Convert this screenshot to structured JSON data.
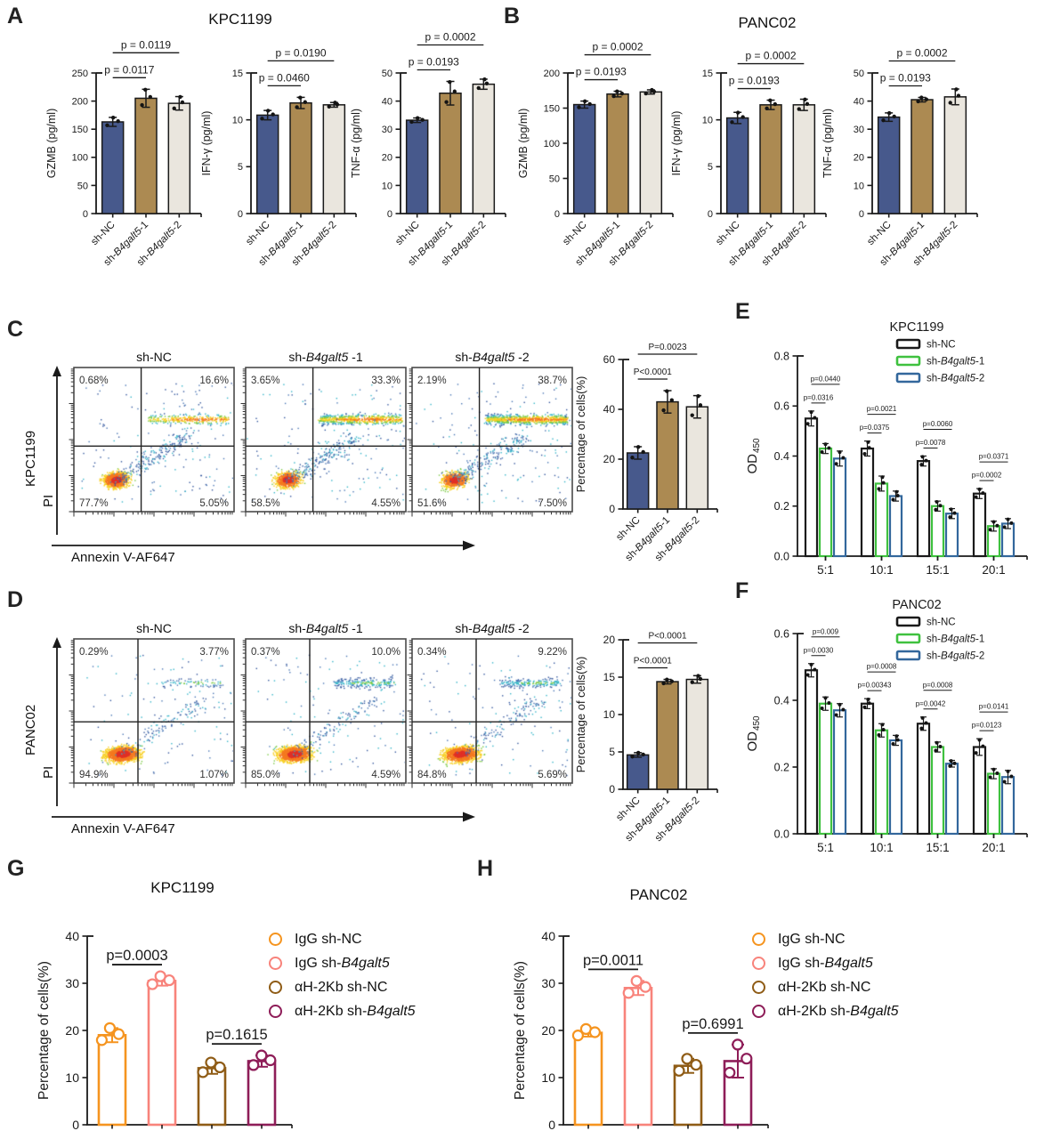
{
  "figure": {
    "panels": {
      "A": {
        "label": "A",
        "title": "KPC1199"
      },
      "B": {
        "label": "B",
        "title": "PANC02"
      },
      "C": {
        "label": "C"
      },
      "D": {
        "label": "D"
      },
      "E": {
        "label": "E"
      },
      "F": {
        "label": "F"
      },
      "G": {
        "label": "G",
        "title": "KPC1199"
      },
      "H": {
        "label": "H",
        "title": "PANC02"
      }
    }
  },
  "flow": {
    "x_axis_label": "Annexin V-AF647",
    "y_axis_label": "PI",
    "C": {
      "cell_line": "KPC1199",
      "plots": [
        {
          "title": "sh-NC",
          "ul": "0.68%",
          "ur": "16.6%",
          "ll": "77.7%",
          "lr": "5.05%"
        },
        {
          "title": "sh-B4galt5 -1",
          "ul": "3.65%",
          "ur": "33.3%",
          "ll": "58.5%",
          "lr": "4.55%"
        },
        {
          "title": "sh-B4galt5 -2",
          "ul": "2.19%",
          "ur": "38.7%",
          "ll": "51.6%",
          "lr": "7.50%"
        }
      ]
    },
    "D": {
      "cell_line": "PANC02",
      "plots": [
        {
          "title": "sh-NC",
          "ul": "0.29%",
          "ur": "3.77%",
          "ll": "94.9%",
          "lr": "1.07%"
        },
        {
          "title": "sh-B4galt5 -1",
          "ul": "0.37%",
          "ur": "10.0%",
          "ll": "85.0%",
          "lr": "4.59%"
        },
        {
          "title": "sh-B4galt5 -2",
          "ul": "0.34%",
          "ur": "9.22%",
          "ll": "84.8%",
          "lr": "5.69%"
        }
      ]
    }
  },
  "chart_data": [
    {
      "id": "a_gzmb",
      "type": "bar",
      "ylabel": "GZMB (pg/ml)",
      "ylim": [
        0,
        250
      ],
      "yticks": [
        "0",
        "50",
        "100",
        "150",
        "200",
        "250"
      ],
      "categories": [
        "sh-NC",
        "sh-B4galt5-1",
        "sh-B4galt5-2"
      ],
      "values": [
        163,
        205,
        196
      ],
      "errors": [
        8,
        16,
        12
      ],
      "bar_colors": [
        "#47598c",
        "#ac8a52",
        "#eae6de"
      ],
      "pvals": [
        {
          "a": 0,
          "b": 1,
          "label": "p = 0.0117"
        },
        {
          "a": 0,
          "b": 2,
          "label": "p = 0.0119"
        }
      ]
    },
    {
      "id": "a_ifng",
      "type": "bar",
      "ylabel": "IFN-γ (pg/ml)",
      "ylim": [
        0,
        15
      ],
      "yticks": [
        "0",
        "5",
        "10",
        "15"
      ],
      "categories": [
        "sh-NC",
        "sh-B4galt5-1",
        "sh-B4galt5-2"
      ],
      "values": [
        10.5,
        11.8,
        11.6
      ],
      "errors": [
        0.5,
        0.6,
        0.25
      ],
      "bar_colors": [
        "#47598c",
        "#ac8a52",
        "#eae6de"
      ],
      "pvals": [
        {
          "a": 0,
          "b": 1,
          "label": "p = 0.0460"
        },
        {
          "a": 0,
          "b": 2,
          "label": "p = 0.0190"
        }
      ]
    },
    {
      "id": "a_tnfa",
      "type": "bar",
      "ylabel": "TNF-α (pg/ml)",
      "ylim": [
        0,
        50
      ],
      "yticks": [
        "0",
        "10",
        "20",
        "30",
        "40",
        "50"
      ],
      "categories": [
        "sh-NC",
        "sh-B4galt5-1",
        "sh-B4galt5-2"
      ],
      "values": [
        33.2,
        42.8,
        46
      ],
      "errors": [
        0.8,
        4.2,
        1.8
      ],
      "bar_colors": [
        "#47598c",
        "#ac8a52",
        "#eae6de"
      ],
      "pvals": [
        {
          "a": 0,
          "b": 1,
          "label": "p = 0.0193"
        },
        {
          "a": 0,
          "b": 2,
          "label": "p = 0.0002"
        }
      ]
    },
    {
      "id": "b_gzmb",
      "type": "bar",
      "ylabel": "GZMB (pg/ml)",
      "ylim": [
        0,
        200
      ],
      "yticks": [
        "0",
        "50",
        "100",
        "150",
        "200"
      ],
      "categories": [
        "sh-NC",
        "sh-B4galt5-1",
        "sh-B4galt5-2"
      ],
      "values": [
        155,
        170,
        173
      ],
      "errors": [
        5,
        4,
        3
      ],
      "bar_colors": [
        "#47598c",
        "#ac8a52",
        "#eae6de"
      ],
      "pvals": [
        {
          "a": 0,
          "b": 1,
          "label": "p = 0.0193"
        },
        {
          "a": 0,
          "b": 2,
          "label": "p = 0.0002"
        }
      ]
    },
    {
      "id": "b_ifng",
      "type": "bar",
      "ylabel": "IFN-γ (pg/ml)",
      "ylim": [
        0,
        15
      ],
      "yticks": [
        "0",
        "5",
        "10",
        "15"
      ],
      "categories": [
        "sh-NC",
        "sh-B4galt5-1",
        "sh-B4galt5-2"
      ],
      "values": [
        10.2,
        11.6,
        11.6
      ],
      "errors": [
        0.6,
        0.5,
        0.6
      ],
      "bar_colors": [
        "#47598c",
        "#ac8a52",
        "#eae6de"
      ],
      "pvals": [
        {
          "a": 0,
          "b": 1,
          "label": "p = 0.0193"
        },
        {
          "a": 0,
          "b": 2,
          "label": "p = 0.0002"
        }
      ]
    },
    {
      "id": "b_tnfa",
      "type": "bar",
      "ylabel": "TNF-α (pg/ml)",
      "ylim": [
        0,
        50
      ],
      "yticks": [
        "0",
        "10",
        "20",
        "30",
        "40",
        "50"
      ],
      "categories": [
        "sh-NC",
        "sh-B4galt5-1",
        "sh-B4galt5-2"
      ],
      "values": [
        34.3,
        40.5,
        41.5
      ],
      "errors": [
        1.5,
        0.8,
        2.8
      ],
      "bar_colors": [
        "#47598c",
        "#ac8a52",
        "#eae6de"
      ],
      "pvals": [
        {
          "a": 0,
          "b": 1,
          "label": "p = 0.0193"
        },
        {
          "a": 0,
          "b": 2,
          "label": "p = 0.0002"
        }
      ]
    },
    {
      "id": "c_pct",
      "type": "bar",
      "ylabel": "Percentage of cells(%)",
      "ylim": [
        0,
        60
      ],
      "yticks": [
        "0",
        "20",
        "40",
        "60"
      ],
      "categories": [
        "sh-NC",
        "sh-B4galt5-1",
        "sh-B4galt5-2"
      ],
      "values": [
        22.5,
        43,
        41
      ],
      "errors": [
        2.5,
        4.5,
        4.5
      ],
      "bar_colors": [
        "#47598c",
        "#ac8a52",
        "#eae6de"
      ],
      "pvals": [
        {
          "a": 0,
          "b": 1,
          "label": "P<0.0001"
        },
        {
          "a": 0,
          "b": 2,
          "label": "P=0.0023"
        }
      ]
    },
    {
      "id": "d_pct",
      "type": "bar",
      "ylabel": "Percentage of cells(%)",
      "ylim": [
        0,
        20
      ],
      "yticks": [
        "0",
        "5",
        "10",
        "15",
        "20"
      ],
      "categories": [
        "sh-NC",
        "sh-B4galt5-1",
        "sh-B4galt5-2"
      ],
      "values": [
        4.6,
        14.4,
        14.7
      ],
      "errors": [
        0.3,
        0.3,
        0.5
      ],
      "bar_colors": [
        "#47598c",
        "#ac8a52",
        "#eae6de"
      ],
      "pvals": [
        {
          "a": 0,
          "b": 1,
          "label": "P<0.0001"
        },
        {
          "a": 0,
          "b": 2,
          "label": "P<0.0001"
        }
      ]
    },
    {
      "id": "e_od",
      "type": "grouped",
      "title": "KPC1199",
      "ylabel": "OD",
      "ylabel_sub": "450",
      "ylim": [
        0,
        0.8
      ],
      "yticks": [
        "0.0",
        "0.2",
        "0.4",
        "0.6",
        "0.8"
      ],
      "categories": [
        "5:1",
        "10:1",
        "15:1",
        "20:1"
      ],
      "series": [
        {
          "name": "sh-NC",
          "color": "#1a1a1a",
          "values": [
            0.55,
            0.43,
            0.38,
            0.25
          ],
          "errors": [
            0.03,
            0.03,
            0.02,
            0.02
          ]
        },
        {
          "name": "sh-B4galt5-1",
          "color": "#3fc13f",
          "values": [
            0.43,
            0.29,
            0.2,
            0.12
          ],
          "errors": [
            0.02,
            0.03,
            0.02,
            0.02
          ]
        },
        {
          "name": "sh-B4galt5-2",
          "color": "#33679c",
          "values": [
            0.39,
            0.24,
            0.17,
            0.13
          ],
          "errors": [
            0.03,
            0.02,
            0.02,
            0.02
          ]
        }
      ],
      "pvals": [
        {
          "group": 0,
          "a": 0,
          "b": 1,
          "label": "p=0.0316"
        },
        {
          "group": 0,
          "a": 0,
          "b": 2,
          "label": "p=0.0440"
        },
        {
          "group": 1,
          "a": 0,
          "b": 1,
          "label": "p=0.0375"
        },
        {
          "group": 1,
          "a": 0,
          "b": 2,
          "label": "p=0.0021"
        },
        {
          "group": 2,
          "a": 0,
          "b": 1,
          "label": "p=0.0078"
        },
        {
          "group": 2,
          "a": 0,
          "b": 2,
          "label": "p=0.0060"
        },
        {
          "group": 3,
          "a": 0,
          "b": 1,
          "label": "p=0.0002"
        },
        {
          "group": 3,
          "a": 0,
          "b": 2,
          "label": "p=0.0371"
        }
      ],
      "legend": [
        "sh-NC",
        "sh-B4galt5-1",
        "sh-B4galt5-2"
      ]
    },
    {
      "id": "f_od",
      "type": "grouped",
      "title": "PANC02",
      "ylabel": "OD",
      "ylabel_sub": "450",
      "ylim": [
        0,
        0.6
      ],
      "yticks": [
        "0.0",
        "0.2",
        "0.4",
        "0.6"
      ],
      "categories": [
        "5:1",
        "10:1",
        "15:1",
        "20:1"
      ],
      "series": [
        {
          "name": "sh-NC",
          "color": "#1a1a1a",
          "values": [
            0.49,
            0.39,
            0.33,
            0.26
          ],
          "errors": [
            0.02,
            0.015,
            0.02,
            0.025
          ]
        },
        {
          "name": "sh-B4galt5-1",
          "color": "#3fc13f",
          "values": [
            0.39,
            0.31,
            0.26,
            0.18
          ],
          "errors": [
            0.02,
            0.02,
            0.015,
            0.015
          ]
        },
        {
          "name": "sh-B4galt5-2",
          "color": "#33679c",
          "values": [
            0.37,
            0.28,
            0.21,
            0.17
          ],
          "errors": [
            0.02,
            0.015,
            0.01,
            0.02
          ]
        }
      ],
      "pvals": [
        {
          "group": 0,
          "a": 0,
          "b": 1,
          "label": "p=0.0030"
        },
        {
          "group": 0,
          "a": 0,
          "b": 2,
          "label": "p=0.009"
        },
        {
          "group": 1,
          "a": 0,
          "b": 1,
          "label": "p=0.00343"
        },
        {
          "group": 1,
          "a": 0,
          "b": 2,
          "label": "p=0.0008"
        },
        {
          "group": 2,
          "a": 0,
          "b": 1,
          "label": "p=0.0042"
        },
        {
          "group": 2,
          "a": 0,
          "b": 2,
          "label": "p=0.0008"
        },
        {
          "group": 3,
          "a": 0,
          "b": 1,
          "label": "p=0.0123"
        },
        {
          "group": 3,
          "a": 0,
          "b": 2,
          "label": "p=0.0141"
        }
      ],
      "legend": [
        "sh-NC",
        "sh-B4galt5-1",
        "sh-B4galt5-2"
      ]
    },
    {
      "id": "g_pct",
      "type": "scatterbar",
      "ylabel": "Percentage of cells(%)",
      "ylim": [
        0,
        40
      ],
      "yticks": [
        "0",
        "10",
        "20",
        "30",
        "40"
      ],
      "categories": [
        "IgG sh-NC",
        "IgG sh-B4galt5",
        "αH-2Kb sh-NC",
        "αH-2Kb sh-B4galt5"
      ],
      "values": [
        19,
        30.5,
        12,
        13.5
      ],
      "errors": [
        1.5,
        1,
        1.2,
        1.2
      ],
      "bar_colors": [
        "#f5941f",
        "#f8837b",
        "#8f5c16",
        "#8e1d58"
      ],
      "pvals": [
        {
          "a": 0,
          "b": 1,
          "label": "p=0.0003"
        },
        {
          "a": 2,
          "b": 3,
          "label": "p=0.1615"
        }
      ],
      "legend": [
        "IgG sh-NC",
        "IgG sh-B4galt5",
        "αH-2Kb sh-NC",
        "αH-2Kb sh-B4galt5"
      ]
    },
    {
      "id": "h_pct",
      "type": "scatterbar",
      "ylabel": "Percentage of cells(%)",
      "ylim": [
        0,
        40
      ],
      "yticks": [
        "0",
        "10",
        "20",
        "30",
        "40"
      ],
      "categories": [
        "IgG sh-NC",
        "IgG sh-B4galt5",
        "αH-2Kb sh-NC",
        "αH-2Kb sh-B4galt5"
      ],
      "values": [
        19.5,
        29,
        12.5,
        13.5
      ],
      "errors": [
        0.8,
        1.5,
        1.5,
        3.5
      ],
      "bar_colors": [
        "#f5941f",
        "#f8837b",
        "#8f5c16",
        "#8e1d58"
      ],
      "pvals": [
        {
          "a": 0,
          "b": 1,
          "label": "p=0.0011"
        },
        {
          "a": 2,
          "b": 3,
          "label": "p=0.6991"
        }
      ],
      "legend": [
        "IgG sh-NC",
        "IgG sh-B4galt5",
        "αH-2Kb sh-NC",
        "αH-2Kb sh-B4galt5"
      ]
    }
  ]
}
